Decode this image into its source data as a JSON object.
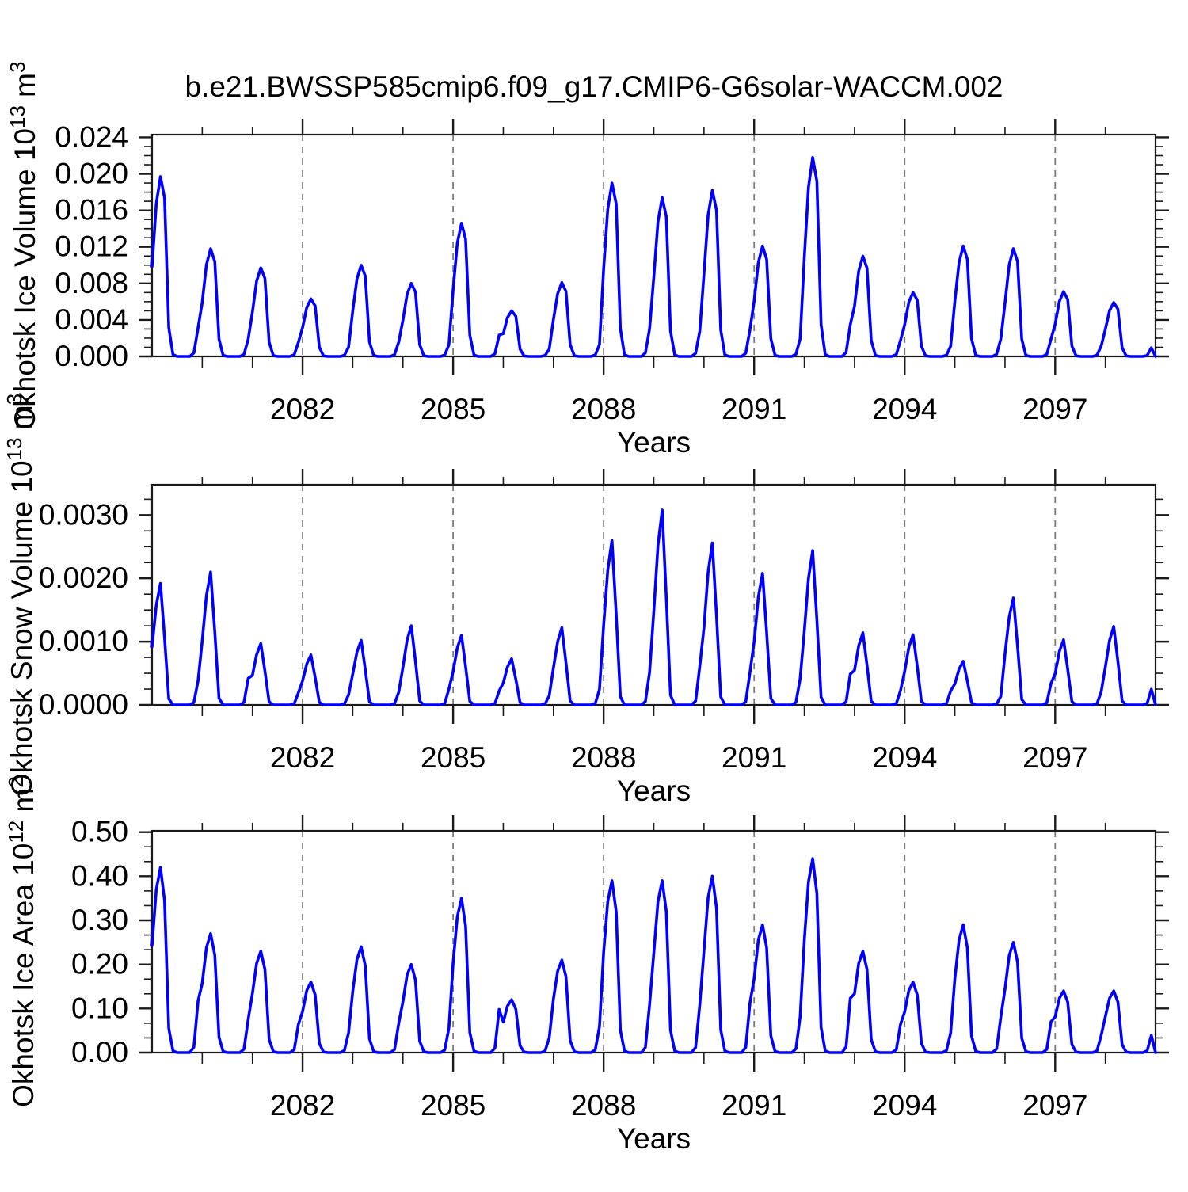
{
  "title": "b.e21.BWSSP585cmip6.f09_g17.CMIP6-G6solar-WACCM.002",
  "axis_color": "#1a1a1a",
  "grid_color": "#7d7d7d",
  "line_color": "#0000ff",
  "chart_data": [
    {
      "type": "line",
      "panel": "okhotsk-ice-volume",
      "ylabel": "Okhotsk Ice Volume 10^13^ m^3^",
      "xlabel": "Years",
      "xlim": [
        2079,
        2099
      ],
      "ylim": [
        0,
        0.0243
      ],
      "x_major_ticks": [
        2082,
        2085,
        2088,
        2091,
        2094,
        2097
      ],
      "x_tick_labels": [
        "2082",
        "2085",
        "2088",
        "2091",
        "2094",
        "2097"
      ],
      "x_minor_step_years": 1,
      "y_major_ticks": [
        0.0,
        0.004,
        0.008,
        0.012,
        0.016,
        0.02,
        0.024
      ],
      "y_tick_labels": [
        "0.000",
        "0.004",
        "0.008",
        "0.012",
        "0.016",
        "0.020",
        "0.024"
      ],
      "y_minor_divisions": 4,
      "grid_vertical_dashed_at_x_major": true,
      "legend": "none",
      "series": [
        {
          "name": "Okhotsk Ice Volume",
          "years": [
            2079,
            2080,
            2081,
            2082,
            2083,
            2084,
            2085,
            2086,
            2087,
            2088,
            2089,
            2090,
            2091,
            2092,
            2093,
            2094,
            2095,
            2096,
            2097,
            2098
          ],
          "annual_peak_values": [
            0.0197,
            0.0118,
            0.0097,
            0.0063,
            0.01,
            0.008,
            0.0146,
            0.005,
            0.0081,
            0.019,
            0.0174,
            0.0182,
            0.0121,
            0.0218,
            0.011,
            0.007,
            0.0121,
            0.0118,
            0.0071,
            0.0059
          ],
          "monthly_fraction_of_peak_jan_to_dec": [
            0.5,
            0.85,
            1.0,
            0.88,
            0.16,
            0.01,
            0,
            0,
            0,
            0,
            0.02,
            0.16
          ],
          "summer_minimum": 0.0
        }
      ]
    },
    {
      "type": "line",
      "panel": "okhotsk-snow-volume",
      "ylabel": "Okhotsk Snow Volume 10^13^ m^3^",
      "xlabel": "Years",
      "xlim": [
        2079,
        2099
      ],
      "ylim": [
        0,
        0.00348
      ],
      "x_major_ticks": [
        2082,
        2085,
        2088,
        2091,
        2094,
        2097
      ],
      "x_tick_labels": [
        "2082",
        "2085",
        "2088",
        "2091",
        "2094",
        "2097"
      ],
      "x_minor_step_years": 1,
      "y_major_ticks": [
        0.0,
        0.001,
        0.002,
        0.003
      ],
      "y_tick_labels": [
        "0.0000",
        "0.0010",
        "0.0020",
        "0.0030"
      ],
      "y_minor_divisions": 4,
      "grid_vertical_dashed_at_x_major": true,
      "legend": "none",
      "series": [
        {
          "name": "Okhotsk Snow Volume",
          "years": [
            2079,
            2080,
            2081,
            2082,
            2083,
            2084,
            2085,
            2086,
            2087,
            2088,
            2089,
            2090,
            2091,
            2092,
            2093,
            2094,
            2095,
            2096,
            2097,
            2098
          ],
          "annual_peak_values": [
            0.00192,
            0.0021,
            0.00097,
            0.00079,
            0.00102,
            0.00125,
            0.0011,
            0.00073,
            0.00122,
            0.0026,
            0.00308,
            0.00256,
            0.00208,
            0.00244,
            0.00114,
            0.00111,
            0.00069,
            0.00169,
            0.00103,
            0.00124
          ],
          "monthly_fraction_of_peak_jan_to_dec": [
            0.48,
            0.82,
            1.0,
            0.55,
            0.05,
            0,
            0,
            0,
            0,
            0,
            0.02,
            0.2
          ],
          "summer_minimum": 0.0
        }
      ]
    },
    {
      "type": "line",
      "panel": "okhotsk-ice-area",
      "ylabel": "Okhotsk Ice Area 10^12^ m^2^",
      "xlabel": "Years",
      "xlim": [
        2079,
        2099
      ],
      "ylim": [
        0,
        0.503
      ],
      "x_major_ticks": [
        2082,
        2085,
        2088,
        2091,
        2094,
        2097
      ],
      "x_tick_labels": [
        "2082",
        "2085",
        "2088",
        "2091",
        "2094",
        "2097"
      ],
      "x_minor_step_years": 1,
      "y_major_ticks": [
        0.0,
        0.1,
        0.2,
        0.3,
        0.4,
        0.5
      ],
      "y_tick_labels": [
        "0.00",
        "0.10",
        "0.20",
        "0.30",
        "0.40",
        "0.50"
      ],
      "y_minor_divisions": 3,
      "grid_vertical_dashed_at_x_major": true,
      "legend": "none",
      "series": [
        {
          "name": "Okhotsk Ice Area",
          "years": [
            2079,
            2080,
            2081,
            2082,
            2083,
            2084,
            2085,
            2086,
            2087,
            2088,
            2089,
            2090,
            2091,
            2092,
            2093,
            2094,
            2095,
            2096,
            2097,
            2098
          ],
          "annual_peak_values": [
            0.42,
            0.27,
            0.23,
            0.16,
            0.24,
            0.2,
            0.35,
            0.12,
            0.21,
            0.39,
            0.39,
            0.4,
            0.29,
            0.44,
            0.23,
            0.16,
            0.29,
            0.25,
            0.14,
            0.14
          ],
          "monthly_fraction_of_peak_jan_to_dec": [
            0.58,
            0.88,
            1.0,
            0.82,
            0.13,
            0.01,
            0,
            0,
            0,
            0,
            0.03,
            0.28
          ],
          "summer_minimum": 0.0
        }
      ]
    }
  ]
}
